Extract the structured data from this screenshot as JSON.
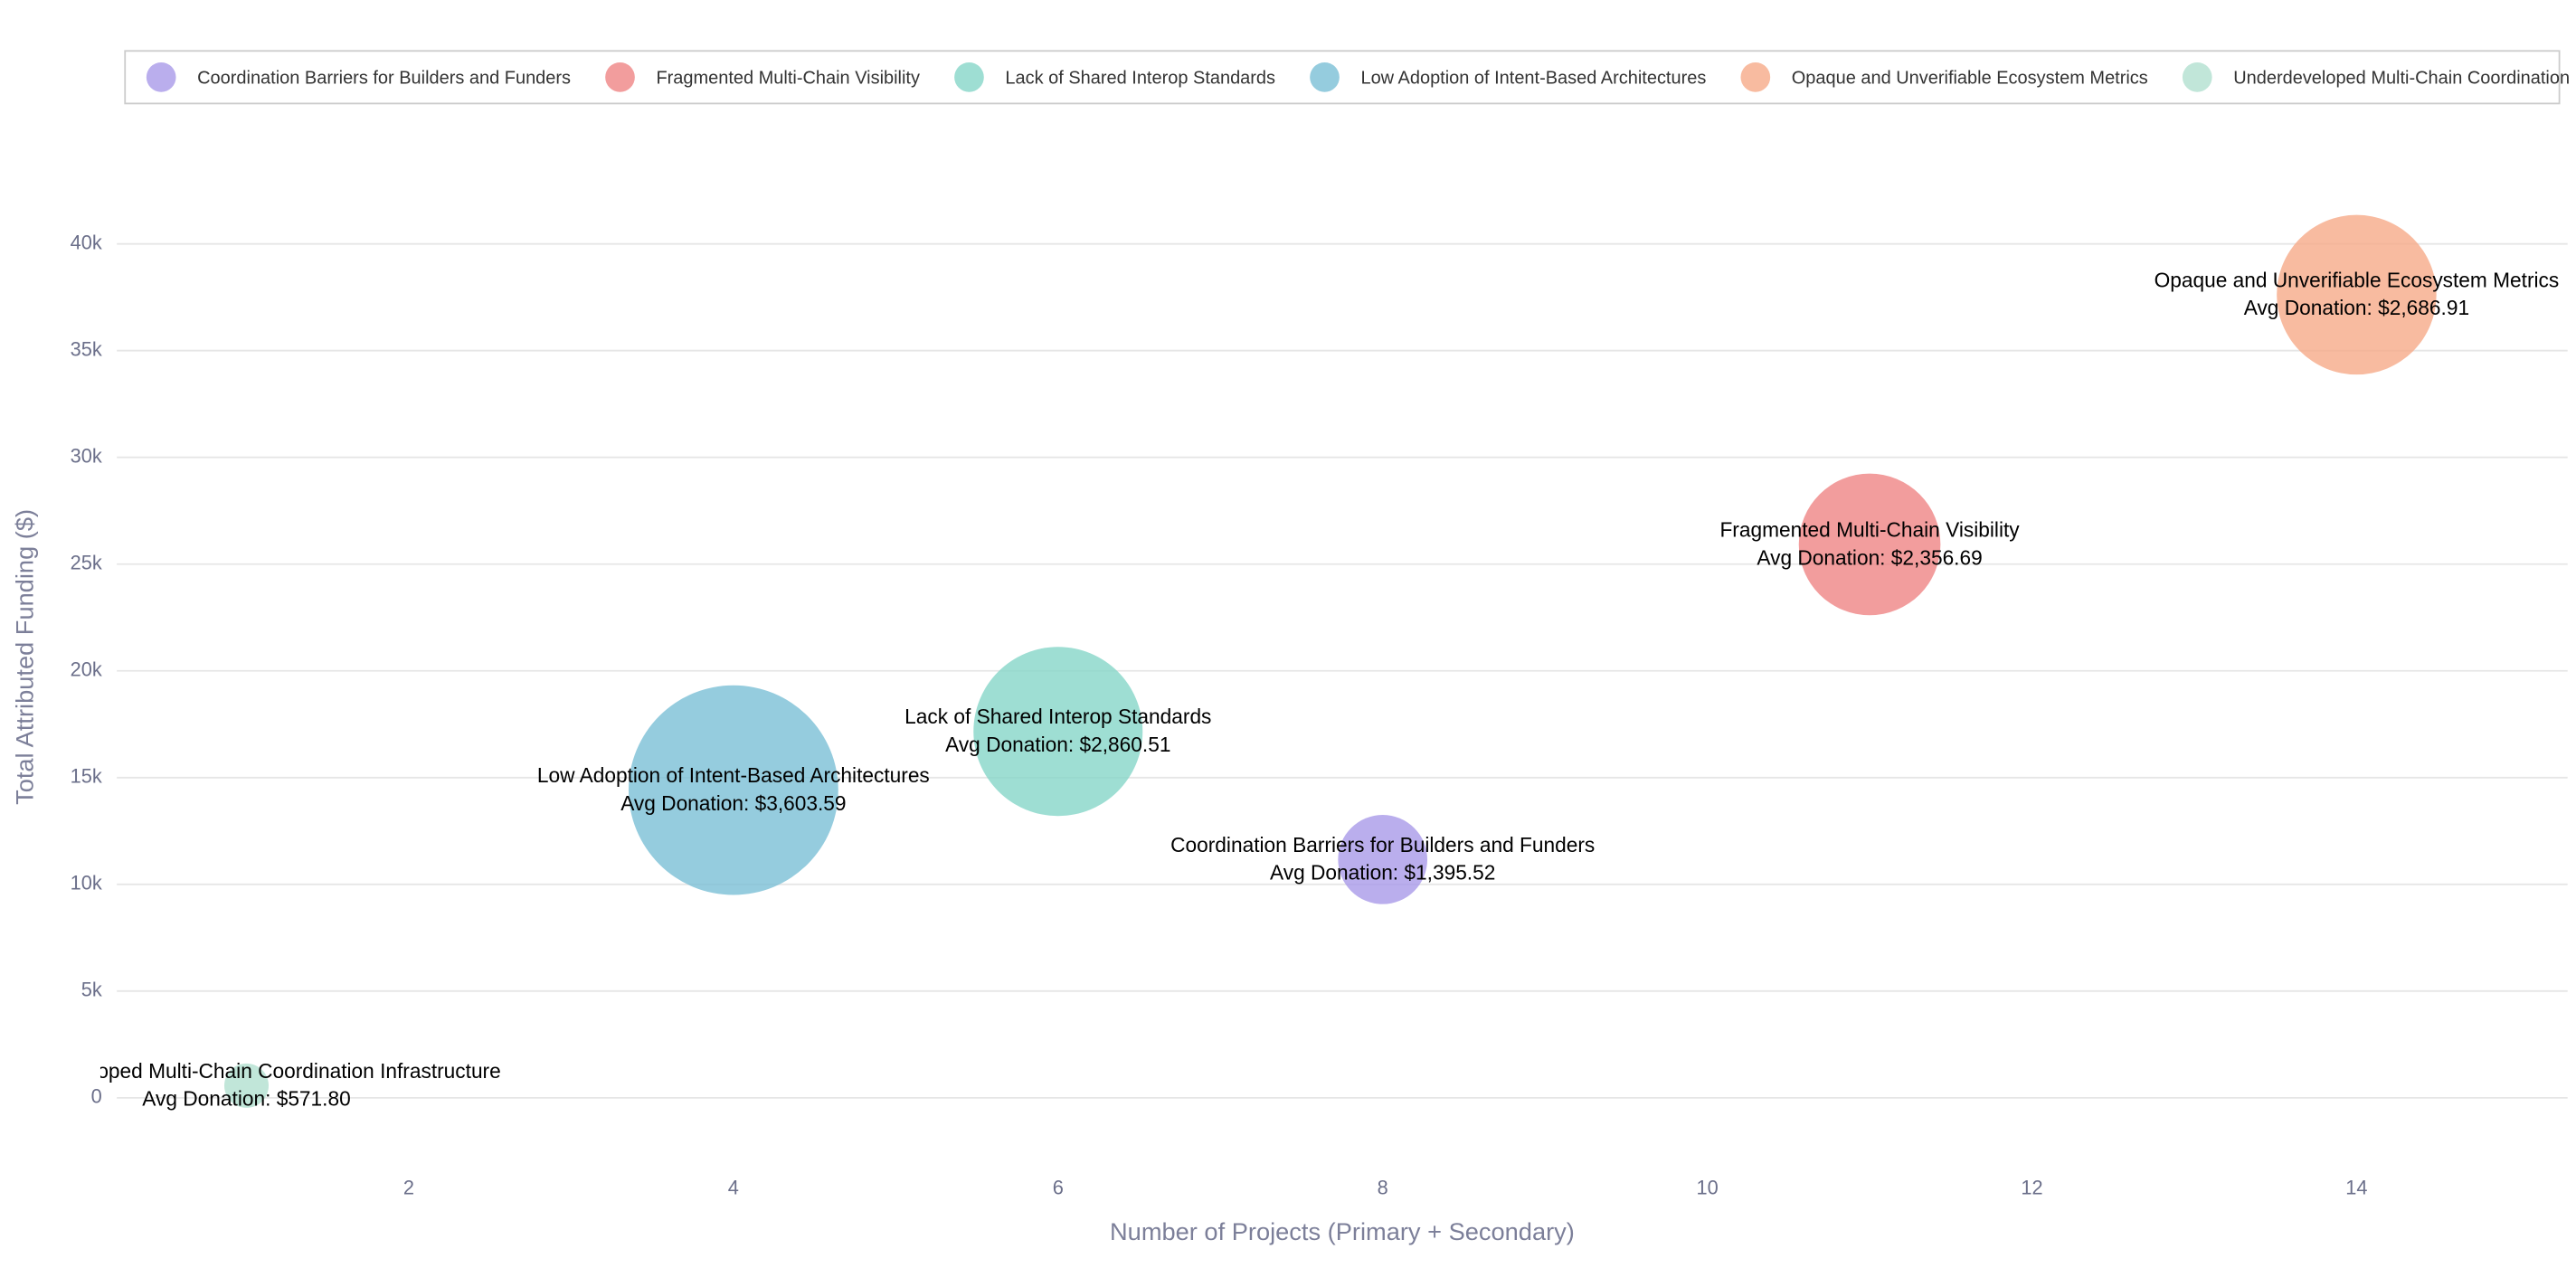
{
  "chart_data": {
    "type": "bubble",
    "xlabel": "Number of Projects (Primary + Secondary)",
    "ylabel": "Total Attributed Funding ($)",
    "xlim": [
      0.1,
      15.3
    ],
    "ylim": [
      -3200,
      44500
    ],
    "xticks": [
      2,
      4,
      6,
      8,
      10,
      12,
      14
    ],
    "yticks": [
      0,
      {
        "value": 5000,
        "label": "5k"
      },
      {
        "value": 10000,
        "label": "10k"
      },
      {
        "value": 15000,
        "label": "15k"
      },
      {
        "value": 20000,
        "label": "20k"
      },
      {
        "value": 25000,
        "label": "25k"
      },
      {
        "value": 30000,
        "label": "30k"
      },
      {
        "value": 35000,
        "label": "35k"
      },
      {
        "value": 40000,
        "label": "40k"
      }
    ],
    "grid": true,
    "legend": "top",
    "series": [
      {
        "name": "Coordination Barriers for Builders and Funders",
        "color": "#a99ae8",
        "x": [
          8
        ],
        "values": [
          11164.16
        ],
        "sizes": [
          1395.52
        ],
        "value_labels": [
          "Avg Donation: $1,395.52"
        ]
      },
      {
        "name": "Fragmented Multi-Chain Visibility",
        "color": "#ef8585",
        "x": [
          11
        ],
        "values": [
          25923.59
        ],
        "sizes": [
          2356.69
        ],
        "value_labels": [
          "Avg Donation: $2,356.69"
        ]
      },
      {
        "name": "Lack of Shared Interop Standards",
        "color": "#86d6c8",
        "x": [
          6
        ],
        "values": [
          17163.06
        ],
        "sizes": [
          2860.51
        ],
        "value_labels": [
          "Avg Donation: $2,860.51"
        ]
      },
      {
        "name": "Low Adoption of Intent-Based Architectures",
        "color": "#7bbfd6",
        "x": [
          4
        ],
        "values": [
          14414.36
        ],
        "sizes": [
          3603.59
        ],
        "value_labels": [
          "Avg Donation: $3,603.59"
        ]
      },
      {
        "name": "Opaque and Unverifiable Ecosystem Metrics",
        "color": "#f6aa88",
        "x": [
          14
        ],
        "values": [
          37617.74
        ],
        "sizes": [
          2686.91
        ],
        "value_labels": [
          "Avg Donation: $2,686.91"
        ]
      },
      {
        "name": "Underdeveloped Multi-Chain Coordination Infrastructure",
        "color": "#b2e0d0",
        "x": [
          1
        ],
        "values": [
          571.8
        ],
        "sizes": [
          571.8
        ],
        "value_labels": [
          "Avg Donation: $571.80"
        ]
      }
    ]
  }
}
